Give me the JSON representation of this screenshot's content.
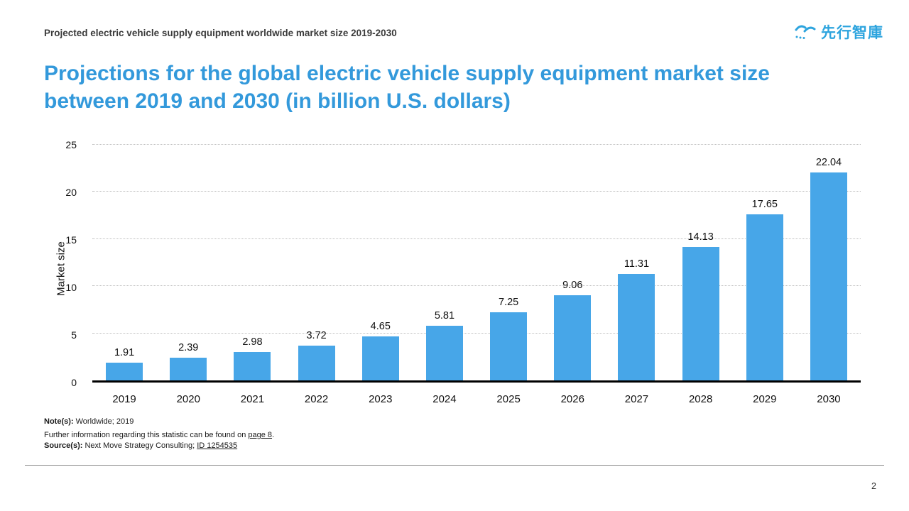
{
  "header": {
    "subtitle": "Projected electric vehicle supply equipment worldwide market size 2019-2030",
    "logo_text": "先行智庫"
  },
  "title": "Projections for the global electric vehicle supply equipment market size between 2019 and 2030 (in billion U.S. dollars)",
  "colors": {
    "bar": "#47a6e8",
    "title_accent": "#3399db",
    "logo_accent": "#2da4de"
  },
  "chart_data": {
    "type": "bar",
    "categories": [
      "2019",
      "2020",
      "2021",
      "2022",
      "2023",
      "2024",
      "2025",
      "2026",
      "2027",
      "2028",
      "2029",
      "2030"
    ],
    "values": [
      1.91,
      2.39,
      2.98,
      3.72,
      4.65,
      5.81,
      7.25,
      9.06,
      11.31,
      14.13,
      17.65,
      22.04
    ],
    "title": "Projections for the global electric vehicle supply equipment market size between 2019 and 2030 (in billion U.S. dollars)",
    "xlabel": "",
    "ylabel": "Market size",
    "ylim": [
      0,
      25
    ],
    "yticks": [
      0,
      5,
      10,
      15,
      20,
      25
    ],
    "grid": "horizontal-dotted",
    "legend": "none",
    "bar_color": "#47a6e8"
  },
  "footer": {
    "note_label": "Note(s):",
    "note_text": " Worldwide; 2019",
    "further_before": "Further information regarding this statistic can be found on ",
    "further_link": "page 8",
    "further_after": ".",
    "source_label": "Source(s):",
    "source_before": " Next Move Strategy Consulting; ",
    "source_link": "ID 1254535"
  },
  "page_number": "2"
}
